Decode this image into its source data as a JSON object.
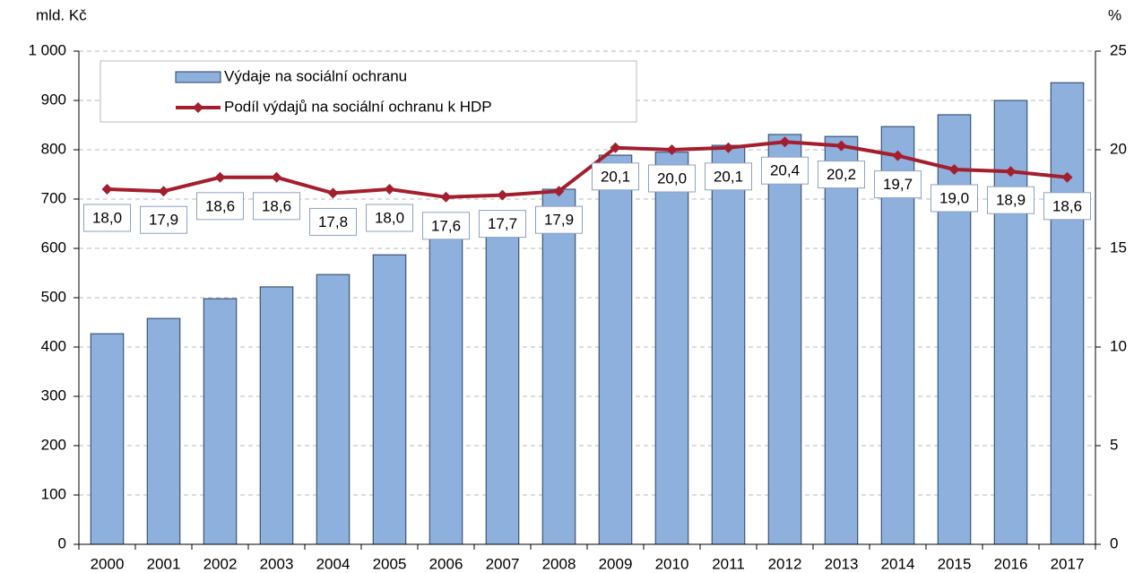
{
  "chart_data": {
    "type": "bar-line",
    "y_label": "mld. Kč",
    "y2_label": "%",
    "categories": [
      "2000",
      "2001",
      "2002",
      "2003",
      "2004",
      "2005",
      "2006",
      "2007",
      "2008",
      "2009",
      "2010",
      "2011",
      "2012",
      "2013",
      "2014",
      "2015",
      "2016",
      "2017"
    ],
    "series": [
      {
        "name": "Výdaje na sociální ochranu",
        "type": "bar",
        "color": "#8db0dd",
        "values": [
          427,
          458,
          498,
          522,
          547,
          587,
          632,
          645,
          720,
          789,
          795,
          809,
          831,
          827,
          847,
          871,
          900,
          936
        ]
      },
      {
        "name": "Podíl výdajů na sociální ochranu k HDP",
        "type": "line",
        "axis": "y2",
        "color": "#a31f2e",
        "values": [
          18.0,
          17.9,
          18.6,
          18.6,
          17.8,
          18.0,
          17.6,
          17.7,
          17.9,
          20.1,
          20.0,
          20.1,
          20.4,
          20.2,
          19.7,
          19.0,
          18.9,
          18.6
        ],
        "value_labels": [
          "18,0",
          "17,9",
          "18,6",
          "18,6",
          "17,8",
          "18,0",
          "17,6",
          "17,7",
          "17,9",
          "20,1",
          "20,0",
          "20,1",
          "20,4",
          "20,2",
          "19,7",
          "19,0",
          "18,9",
          "18,6"
        ]
      }
    ],
    "ylim": [
      0,
      1000
    ],
    "yticks": [
      0,
      100,
      200,
      300,
      400,
      500,
      600,
      700,
      800,
      900,
      {
        "value": 1000,
        "label": "1 000"
      }
    ],
    "y2lim": [
      0,
      25
    ],
    "y2ticks": [
      0,
      5,
      10,
      15,
      20,
      25
    ],
    "grid": true,
    "legend": "top-left"
  }
}
